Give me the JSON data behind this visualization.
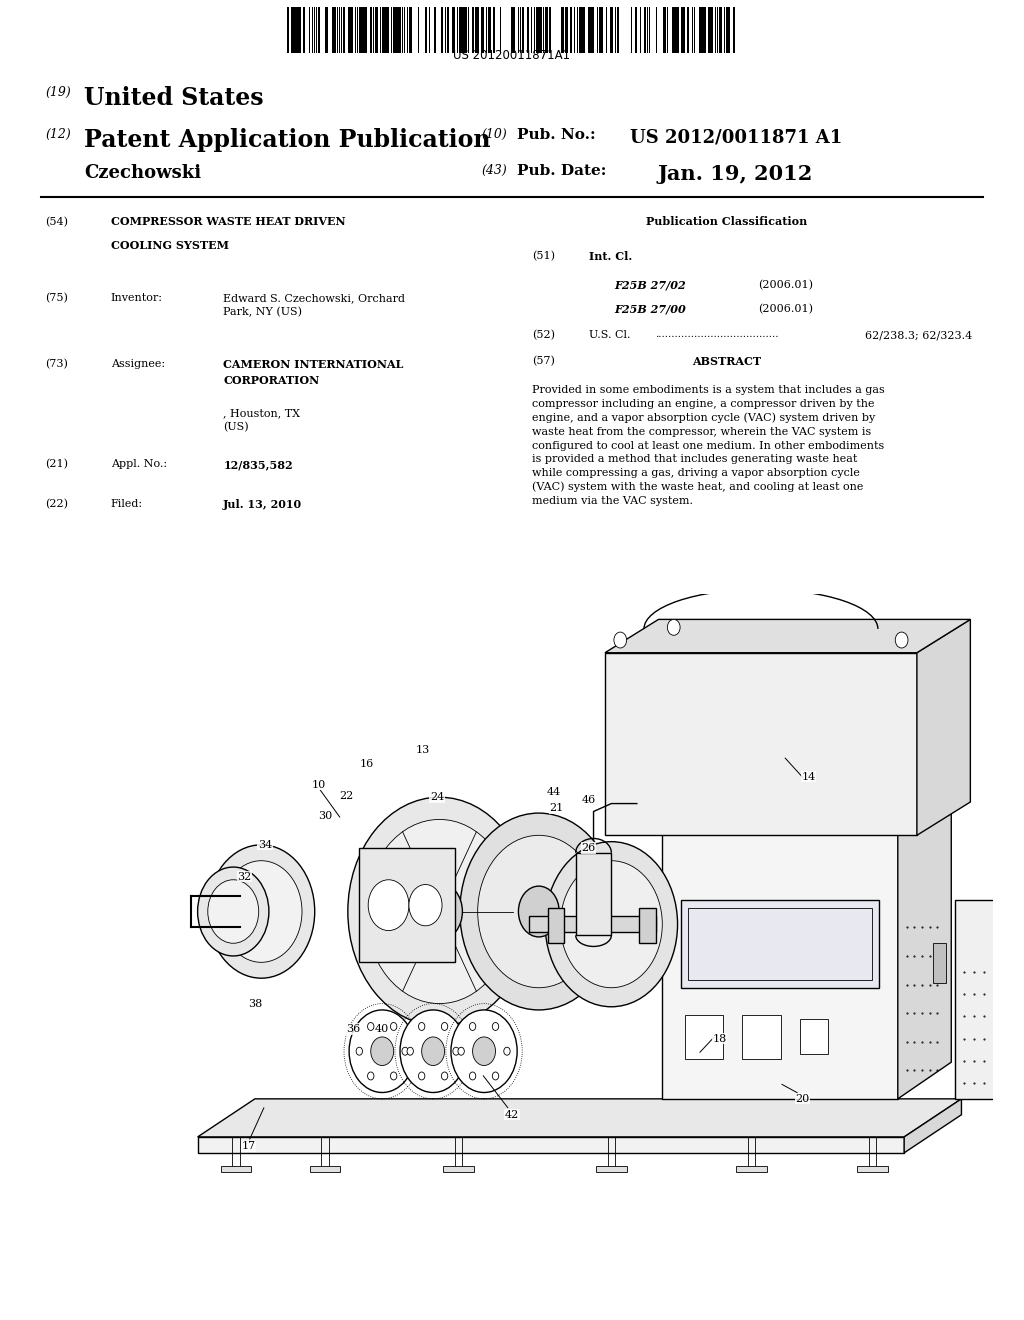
{
  "bg_color": "#ffffff",
  "barcode_text": "US 20120011871A1",
  "title_19": "United States",
  "title_12": "Patent Application Publication",
  "pub_no_label": "Pub. No.:",
  "pub_no_value": "US 2012/0011871 A1",
  "pub_date_label": "Pub. Date:",
  "pub_date_value": "Jan. 19, 2012",
  "inventor_surname": "Czechowski",
  "num_19": "(19)",
  "num_12": "(12)",
  "num_10": "(10)",
  "num_43": "(43)",
  "num_54": "(54)",
  "num_75": "(75)",
  "num_73": "(73)",
  "num_21": "(21)",
  "num_22": "(22)",
  "num_51": "(51)",
  "num_52": "(52)",
  "num_57": "(57)",
  "sec54_title_line1": "COMPRESSOR WASTE HEAT DRIVEN",
  "sec54_title_line2": "COOLING SYSTEM",
  "sec75_label": "Inventor:",
  "sec75_value": "Edward S. Czechowski, Orchard\nPark, NY (US)",
  "sec73_label": "Assignee:",
  "sec73_bold": "CAMERON INTERNATIONAL\nCORPORATION",
  "sec73_rest": ", Houston, TX\n(US)",
  "sec21_label": "Appl. No.:",
  "sec21_value": "12/835,582",
  "sec22_label": "Filed:",
  "sec22_value": "Jul. 13, 2010",
  "pub_class_title": "Publication Classification",
  "sec51_label": "Int. Cl.",
  "sec51_c1": "F25B 27/02",
  "sec51_y1": "(2006.01)",
  "sec51_c2": "F25B 27/00",
  "sec51_y2": "(2006.01)",
  "sec52_label": "U.S. Cl.",
  "sec52_dots": "......................................",
  "sec52_value": "62/238.3; 62/323.4",
  "sec57_title": "ABSTRACT",
  "abstract": "Provided in some embodiments is a system that includes a gas\ncompressor including an engine, a compressor driven by the\nengine, and a vapor absorption cycle (VAC) system driven by\nwaste heat from the compressor, wherein the VAC system is\nconfigured to cool at least one medium. In other embodiments\nis provided a method that includes generating waste heat\nwhile compressing a gas, driving a vapor absorption cycle\n(VAC) system with the waste heat, and cooling at least one\nmedium via the VAC system."
}
